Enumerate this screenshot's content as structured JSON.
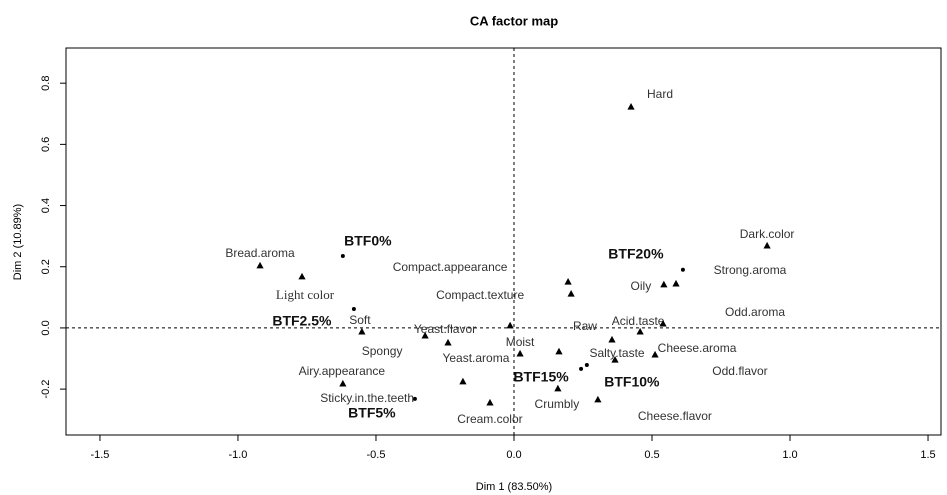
{
  "chart_data": {
    "type": "scatter",
    "title": "CA factor map",
    "x_label": "Dim 1 (83.50%)",
    "y_label": "Dim 2 (10.89%)",
    "xlim": [
      -1.623,
      1.547
    ],
    "ylim": [
      -0.35,
      0.915
    ],
    "xticks": [
      -1.5,
      {
        "value": -1.0,
        "label": "-1.0"
      },
      -0.5,
      {
        "value": 0,
        "label": "0.0"
      },
      0.5,
      {
        "value": 1.0,
        "label": "1.0"
      },
      1.5
    ],
    "yticks": [
      -0.2,
      {
        "value": 0,
        "label": "0.0"
      },
      0.2,
      0.4,
      0.6,
      0.8
    ],
    "zero_lines": true,
    "series": [
      {
        "marker": "circle",
        "color": "#000000",
        "bold_labels": true,
        "labels": [
          "BTF0%",
          "BTF20%",
          "BTF2.5%",
          "BTF5%",
          "BTF15%",
          "BTF10%"
        ],
        "x": [
          -0.62,
          0.612,
          -0.58,
          -0.359,
          0.243,
          0.264
        ],
        "y": [
          0.235,
          0.19,
          0.062,
          -0.232,
          -0.134,
          -0.121
        ]
      },
      {
        "marker": "triangle",
        "color": "#000000",
        "bold_labels": false,
        "labels": [
          "Hard",
          "Dark.color",
          "Bread.aroma",
          "Light color",
          "Compact.appearance",
          "Compact.texture",
          "Oily",
          "Strong.aroma",
          "Soft",
          "Spongy",
          "Yeast.flavor",
          "Yeast.aroma",
          "Moist",
          "Raw",
          "Acid.taste",
          "Salty.taste",
          "Cheese.aroma",
          "Odd.aroma",
          "Odd.flavor",
          "Cheese.flavor",
          "Crumbly",
          "Cream.color",
          "Airy.appearance",
          "Sticky.in.the.teeth"
        ],
        "x": [
          0.424,
          0.917,
          -0.92,
          -0.768,
          0.196,
          0.207,
          0.543,
          0.587,
          -0.551,
          -0.322,
          -0.239,
          -0.185,
          0.022,
          0.163,
          0.457,
          0.366,
          0.511,
          0.54,
          0.355,
          0.304,
          0.159,
          -0.087,
          -0.62,
          -0.014
        ],
        "y": [
          0.722,
          0.268,
          0.203,
          0.167,
          0.15,
          0.111,
          0.141,
          0.144,
          -0.013,
          -0.026,
          -0.049,
          -0.176,
          -0.085,
          -0.078,
          -0.013,
          -0.105,
          -0.088,
          0.013,
          -0.039,
          -0.235,
          -0.199,
          -0.245,
          -0.183,
          0.007
        ]
      }
    ]
  }
}
